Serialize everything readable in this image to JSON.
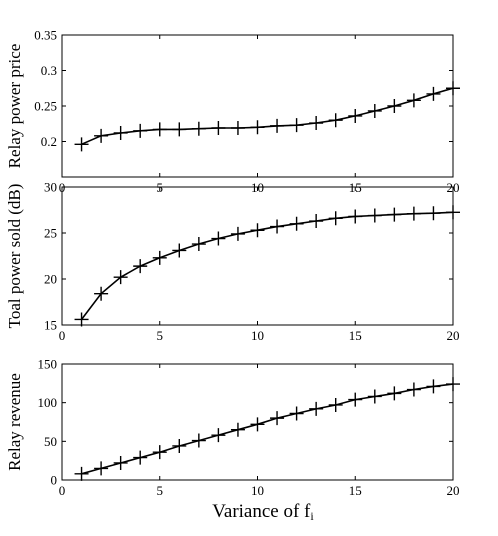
{
  "chart_data": [
    {
      "type": "line",
      "ylabel": "Relay power price",
      "xlabel": "",
      "xlim": [
        0,
        20
      ],
      "ylim": [
        0.15,
        0.35
      ],
      "xticks": [
        "0",
        "5",
        "10",
        "15",
        "20"
      ],
      "yticks": [
        "0.2",
        "0.25",
        "0.3",
        "0.35"
      ],
      "marker": "+",
      "grid": false,
      "series": [
        {
          "x": [
            1,
            2,
            3,
            4,
            5,
            6,
            7,
            8,
            9,
            10,
            11,
            12,
            13,
            14,
            15,
            16,
            17,
            18,
            19,
            20
          ],
          "values": [
            0.196,
            0.208,
            0.212,
            0.215,
            0.217,
            0.217,
            0.218,
            0.219,
            0.219,
            0.22,
            0.222,
            0.223,
            0.226,
            0.23,
            0.236,
            0.243,
            0.25,
            0.258,
            0.267,
            0.275
          ]
        }
      ]
    },
    {
      "type": "line",
      "ylabel": "Toal power sold (dB)",
      "xlabel": "",
      "xlim": [
        0,
        20
      ],
      "ylim": [
        15,
        30
      ],
      "xticks": [
        "0",
        "5",
        "10",
        "15",
        "20"
      ],
      "yticks": [
        "15",
        "20",
        "25",
        "30"
      ],
      "marker": "+",
      "grid": false,
      "series": [
        {
          "x": [
            1,
            2,
            3,
            4,
            5,
            6,
            7,
            8,
            9,
            10,
            11,
            12,
            13,
            14,
            15,
            16,
            17,
            18,
            19,
            20
          ],
          "values": [
            15.6,
            18.4,
            20.2,
            21.4,
            22.3,
            23.1,
            23.8,
            24.4,
            24.9,
            25.3,
            25.7,
            26.0,
            26.3,
            26.6,
            26.8,
            26.9,
            27.0,
            27.1,
            27.15,
            27.25
          ]
        }
      ]
    },
    {
      "type": "line",
      "ylabel": "Relay revenue",
      "xlabel": "Variance of f",
      "xlabel_sub": "i",
      "xlim": [
        0,
        20
      ],
      "ylim": [
        0,
        150
      ],
      "xticks": [
        "0",
        "5",
        "10",
        "15",
        "20"
      ],
      "yticks": [
        "0",
        "50",
        "100",
        "150"
      ],
      "marker": "+",
      "grid": false,
      "series": [
        {
          "x": [
            1,
            2,
            3,
            4,
            5,
            6,
            7,
            8,
            9,
            10,
            11,
            12,
            13,
            14,
            15,
            16,
            17,
            18,
            19,
            20
          ],
          "values": [
            8,
            15,
            22,
            29,
            36,
            44,
            51,
            58,
            65,
            72,
            80,
            86,
            92,
            97,
            104,
            108,
            112,
            117,
            121,
            124
          ]
        }
      ]
    }
  ]
}
